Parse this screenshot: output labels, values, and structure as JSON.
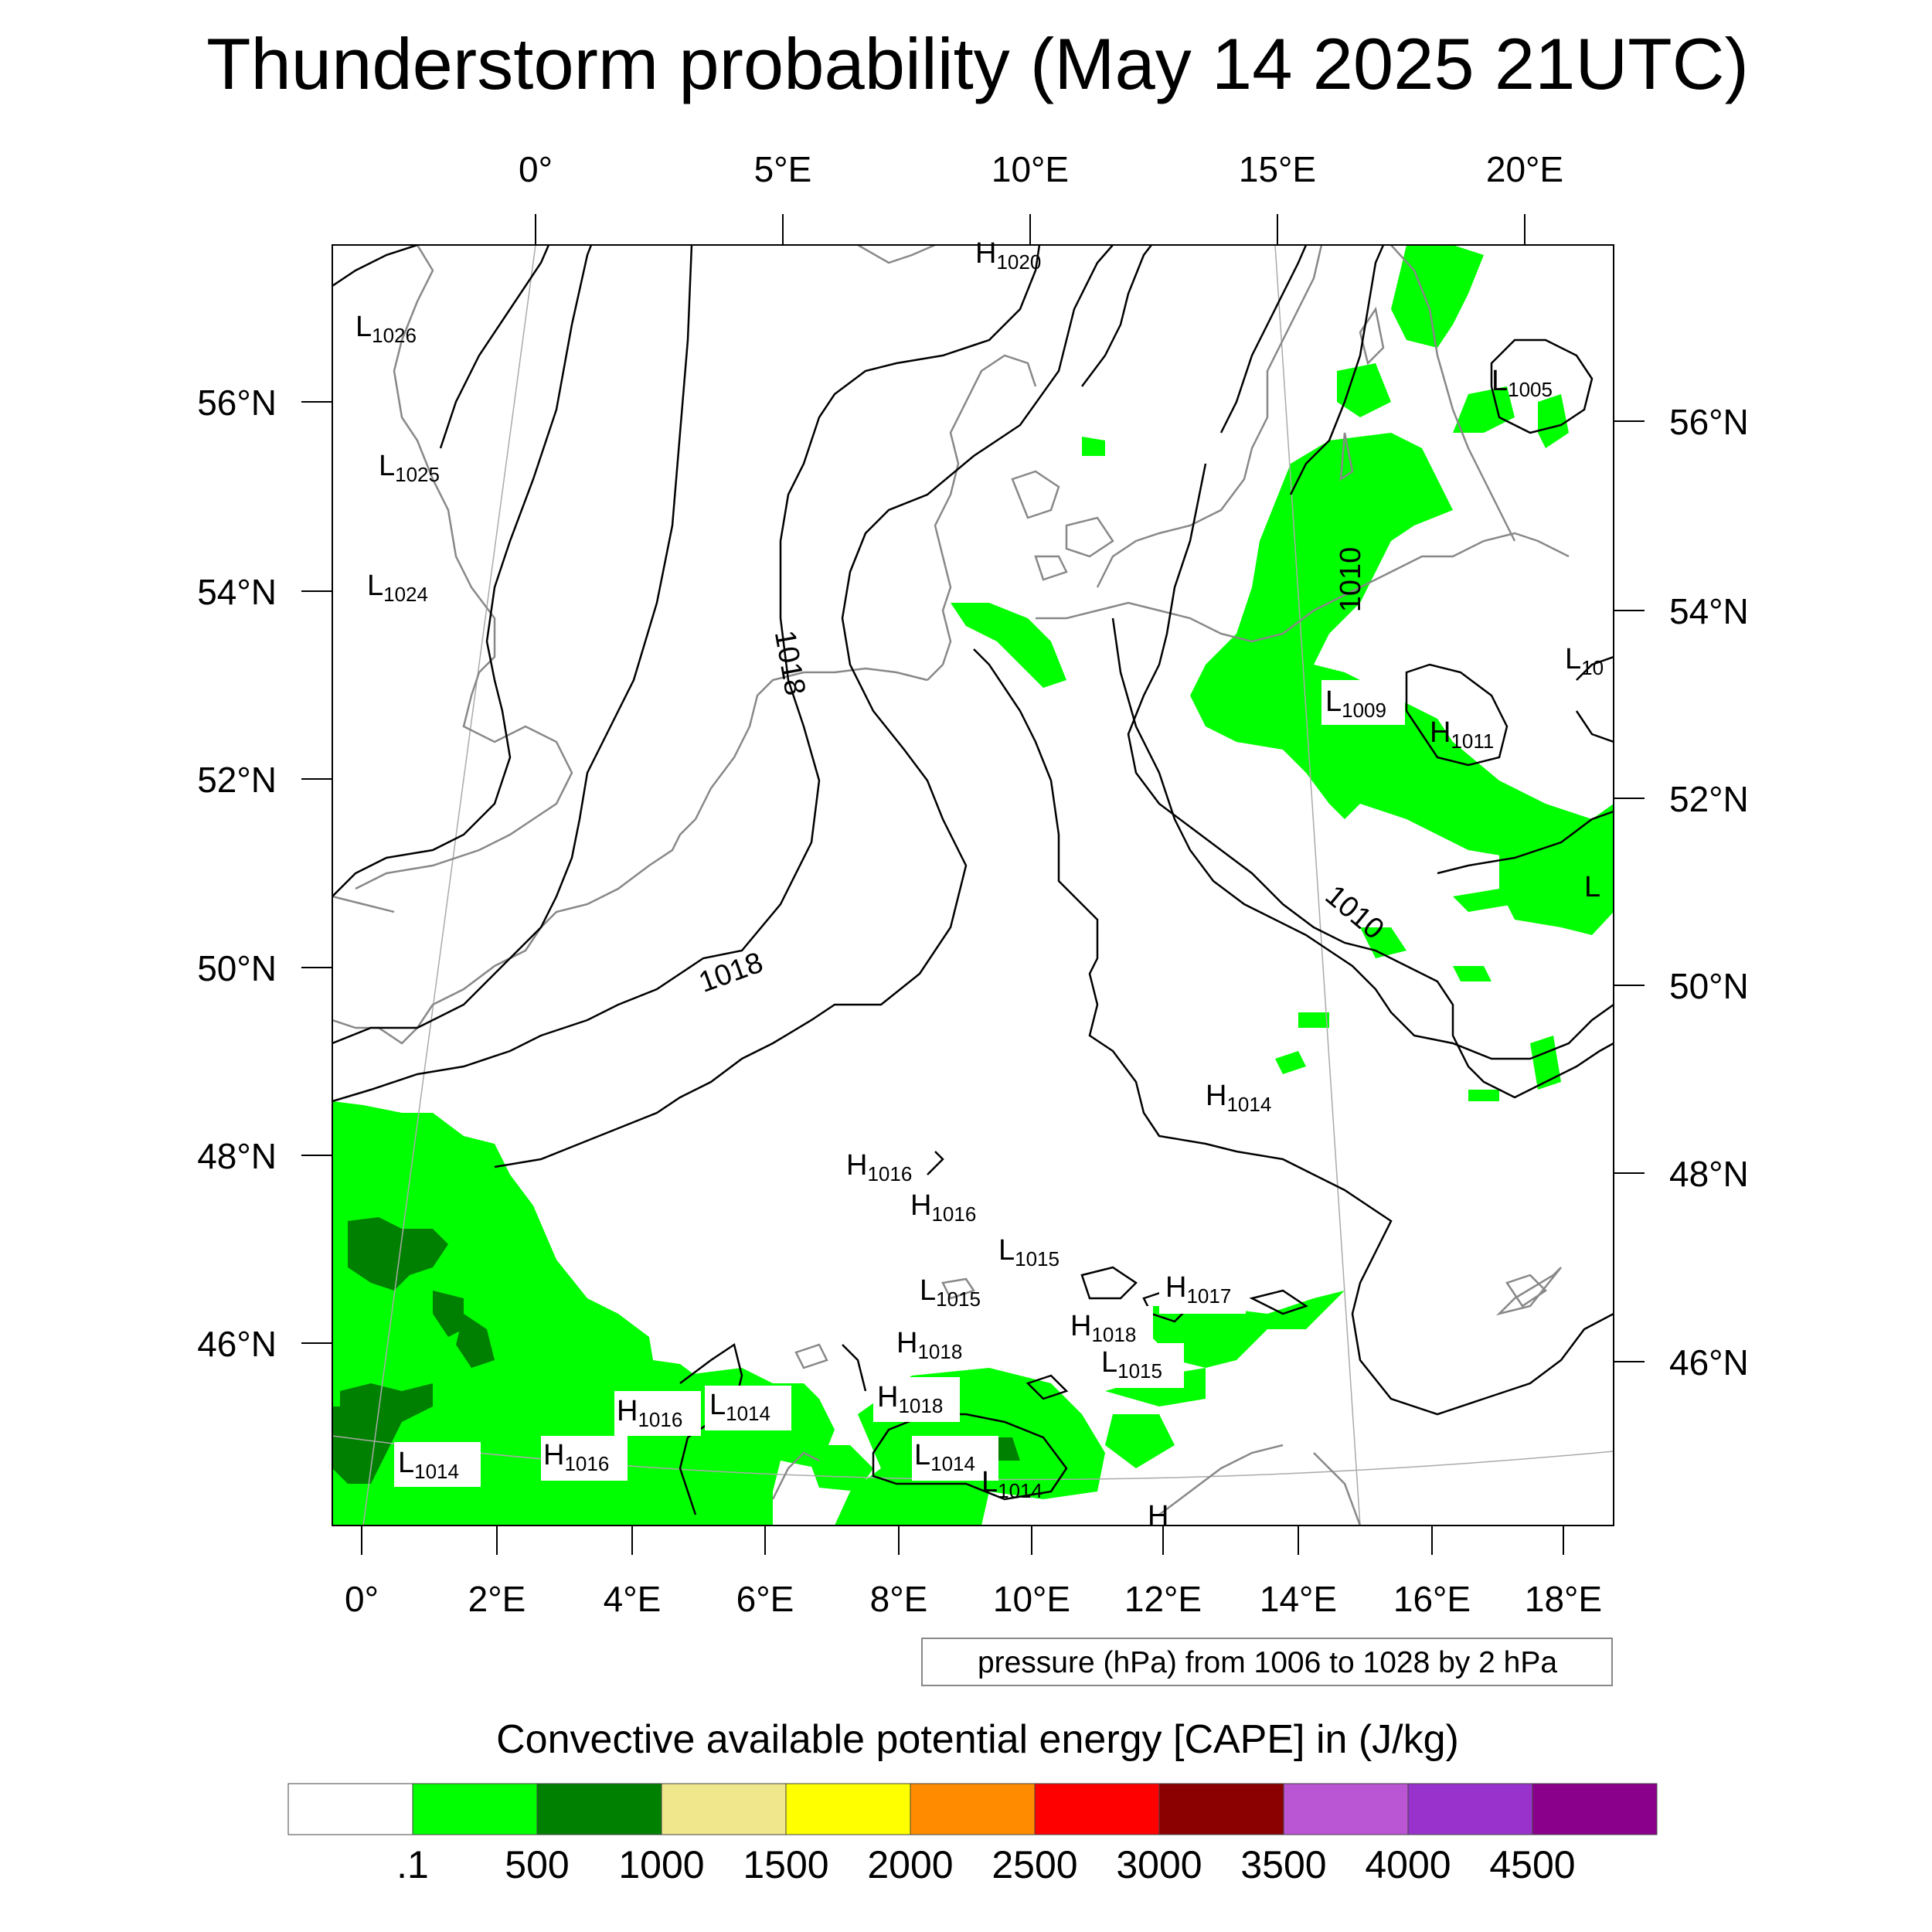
{
  "title": "Thunderstorm probability (May 14 2025 21UTC)",
  "axes": {
    "top_lon_labels": [
      "0°",
      "5°E",
      "10°E",
      "15°E",
      "20°E"
    ],
    "bottom_lon_labels": [
      "0°",
      "2°E",
      "4°E",
      "6°E",
      "8°E",
      "10°E",
      "12°E",
      "14°E",
      "16°E",
      "18°E"
    ],
    "left_lat_labels": [
      "56°N",
      "54°N",
      "52°N",
      "50°N",
      "48°N",
      "46°N"
    ],
    "right_lat_labels": [
      "56°N",
      "54°N",
      "52°N",
      "50°N",
      "48°N",
      "46°N"
    ]
  },
  "pressure_note": "pressure (hPa) from 1006 to 1028 by 2 hPa",
  "isobar_labels": [
    "1018",
    "1018",
    "1010",
    "1010"
  ],
  "pressure_centers": [
    {
      "type": "H",
      "value": "1020"
    },
    {
      "type": "L",
      "value": "1026"
    },
    {
      "type": "L",
      "value": "1025"
    },
    {
      "type": "L",
      "value": "1024"
    },
    {
      "type": "L",
      "value": "1005"
    },
    {
      "type": "L",
      "value": "1009"
    },
    {
      "type": "H",
      "value": "1011"
    },
    {
      "type": "H",
      "value": "1014"
    },
    {
      "type": "H",
      "value": "1016"
    },
    {
      "type": "H",
      "value": "1016"
    },
    {
      "type": "L",
      "value": "1015"
    },
    {
      "type": "L",
      "value": "1015"
    },
    {
      "type": "H",
      "value": "1017"
    },
    {
      "type": "H",
      "value": "1018"
    },
    {
      "type": "H",
      "value": "1018"
    },
    {
      "type": "L",
      "value": "1015"
    },
    {
      "type": "H",
      "value": "1018"
    },
    {
      "type": "H",
      "value": "1016"
    },
    {
      "type": "L",
      "value": "1014"
    },
    {
      "type": "H",
      "value": "1016"
    },
    {
      "type": "L",
      "value": "1014"
    },
    {
      "type": "L",
      "value": "1014"
    },
    {
      "type": "L",
      "value": "1014"
    },
    {
      "type": "L",
      "value": "10"
    },
    {
      "type": "L",
      "value": ""
    },
    {
      "type": "H",
      "value": ""
    }
  ],
  "legend": {
    "title": "Convective available potential energy [CAPE] in (J/kg)",
    "colors": [
      "#ffffff",
      "#00ff00",
      "#008000",
      "#f0e68c",
      "#ffff00",
      "#ff8c00",
      "#ff0000",
      "#8b0000",
      "#ba55d3",
      "#9932cc",
      "#8b008b"
    ],
    "labels": [
      ".1",
      "500",
      "1000",
      "1500",
      "2000",
      "2500",
      "3000",
      "3500",
      "4000",
      "4500"
    ]
  }
}
